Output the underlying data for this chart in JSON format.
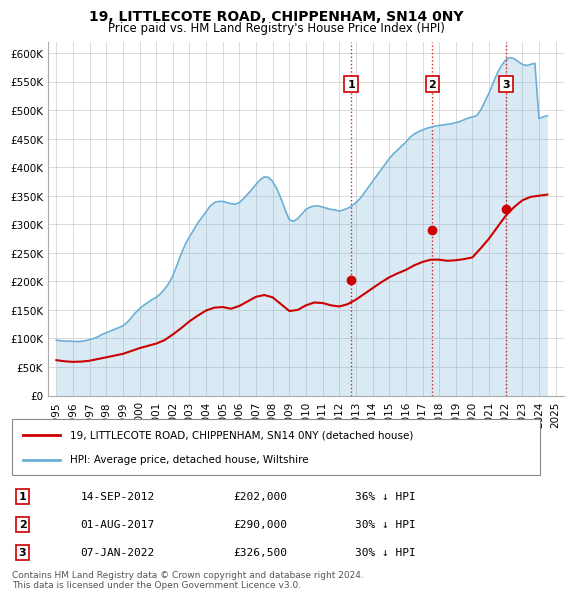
{
  "title": "19, LITTLECOTE ROAD, CHIPPENHAM, SN14 0NY",
  "subtitle": "Price paid vs. HM Land Registry's House Price Index (HPI)",
  "property_label": "19, LITTLECOTE ROAD, CHIPPENHAM, SN14 0NY (detached house)",
  "hpi_label": "HPI: Average price, detached house, Wiltshire",
  "footnote": "Contains HM Land Registry data © Crown copyright and database right 2024.\nThis data is licensed under the Open Government Licence v3.0.",
  "transactions": [
    {
      "num": 1,
      "date": "14-SEP-2012",
      "price": 202000,
      "hpi_note": "36% ↓ HPI",
      "x_year": 2012.71
    },
    {
      "num": 2,
      "date": "01-AUG-2017",
      "price": 290000,
      "hpi_note": "30% ↓ HPI",
      "x_year": 2017.58
    },
    {
      "num": 3,
      "date": "07-JAN-2022",
      "price": 326500,
      "hpi_note": "30% ↓ HPI",
      "x_year": 2022.02
    }
  ],
  "hpi_color": "#6baed6",
  "price_color": "#cc0000",
  "vline_color": "#cc0000",
  "marker_color": "#cc0000",
  "ylim": [
    0,
    620000
  ],
  "xlim_start": 1994.5,
  "xlim_end": 2025.5,
  "background_color": "#ffffff",
  "grid_color": "#cccccc",
  "hpi_data": {
    "years": [
      1995.0,
      1995.25,
      1995.5,
      1995.75,
      1996.0,
      1996.25,
      1996.5,
      1996.75,
      1997.0,
      1997.25,
      1997.5,
      1997.75,
      1998.0,
      1998.25,
      1998.5,
      1998.75,
      1999.0,
      1999.25,
      1999.5,
      1999.75,
      2000.0,
      2000.25,
      2000.5,
      2000.75,
      2001.0,
      2001.25,
      2001.5,
      2001.75,
      2002.0,
      2002.25,
      2002.5,
      2002.75,
      2003.0,
      2003.25,
      2003.5,
      2003.75,
      2004.0,
      2004.25,
      2004.5,
      2004.75,
      2005.0,
      2005.25,
      2005.5,
      2005.75,
      2006.0,
      2006.25,
      2006.5,
      2006.75,
      2007.0,
      2007.25,
      2007.5,
      2007.75,
      2008.0,
      2008.25,
      2008.5,
      2008.75,
      2009.0,
      2009.25,
      2009.5,
      2009.75,
      2010.0,
      2010.25,
      2010.5,
      2010.75,
      2011.0,
      2011.25,
      2011.5,
      2011.75,
      2012.0,
      2012.25,
      2012.5,
      2012.75,
      2013.0,
      2013.25,
      2013.5,
      2013.75,
      2014.0,
      2014.25,
      2014.5,
      2014.75,
      2015.0,
      2015.25,
      2015.5,
      2015.75,
      2016.0,
      2016.25,
      2016.5,
      2016.75,
      2017.0,
      2017.25,
      2017.5,
      2017.75,
      2018.0,
      2018.25,
      2018.5,
      2018.75,
      2019.0,
      2019.25,
      2019.5,
      2019.75,
      2020.0,
      2020.25,
      2020.5,
      2020.75,
      2021.0,
      2021.25,
      2021.5,
      2021.75,
      2022.0,
      2022.25,
      2022.5,
      2022.75,
      2023.0,
      2023.25,
      2023.5,
      2023.75,
      2024.0,
      2024.25,
      2024.5
    ],
    "values": [
      97000,
      96000,
      95000,
      95500,
      95000,
      94500,
      95000,
      96000,
      98000,
      100000,
      103000,
      107000,
      110000,
      113000,
      116000,
      119000,
      122000,
      128000,
      136000,
      145000,
      152000,
      158000,
      163000,
      168000,
      172000,
      178000,
      186000,
      196000,
      210000,
      228000,
      248000,
      265000,
      278000,
      290000,
      302000,
      312000,
      322000,
      332000,
      338000,
      340000,
      340000,
      338000,
      336000,
      335000,
      338000,
      345000,
      353000,
      361000,
      370000,
      378000,
      383000,
      382000,
      375000,
      362000,
      345000,
      325000,
      308000,
      305000,
      310000,
      318000,
      326000,
      330000,
      332000,
      332000,
      330000,
      328000,
      326000,
      325000,
      323000,
      325000,
      328000,
      332000,
      338000,
      345000,
      355000,
      365000,
      375000,
      385000,
      395000,
      405000,
      415000,
      423000,
      430000,
      437000,
      444000,
      452000,
      458000,
      462000,
      465000,
      468000,
      470000,
      472000,
      473000,
      474000,
      475000,
      476000,
      478000,
      480000,
      483000,
      486000,
      488000,
      490000,
      500000,
      515000,
      530000,
      548000,
      565000,
      578000,
      588000,
      592000,
      590000,
      585000,
      580000,
      578000,
      580000,
      582000,
      485000,
      488000,
      490000
    ]
  },
  "price_data": {
    "years": [
      1995.0,
      1995.5,
      1996.0,
      1996.5,
      1997.0,
      1997.5,
      1998.0,
      1998.5,
      1999.0,
      1999.5,
      2000.0,
      2000.5,
      2001.0,
      2001.5,
      2002.0,
      2002.5,
      2003.0,
      2003.5,
      2004.0,
      2004.5,
      2005.0,
      2005.5,
      2006.0,
      2006.5,
      2007.0,
      2007.5,
      2008.0,
      2008.5,
      2009.0,
      2009.5,
      2010.0,
      2010.5,
      2011.0,
      2011.5,
      2012.0,
      2012.5,
      2013.0,
      2013.5,
      2014.0,
      2014.5,
      2015.0,
      2015.5,
      2016.0,
      2016.5,
      2017.0,
      2017.5,
      2018.0,
      2018.5,
      2019.0,
      2019.5,
      2020.0,
      2020.5,
      2021.0,
      2021.5,
      2022.0,
      2022.5,
      2023.0,
      2023.5,
      2024.0,
      2024.5
    ],
    "values": [
      62000,
      60000,
      59000,
      59500,
      61000,
      64000,
      67000,
      70000,
      73000,
      78000,
      83000,
      87000,
      91000,
      97000,
      107000,
      118000,
      130000,
      140000,
      149000,
      154000,
      155000,
      152000,
      157000,
      165000,
      173000,
      176000,
      172000,
      160000,
      148000,
      150000,
      158000,
      163000,
      162000,
      158000,
      156000,
      160000,
      168000,
      178000,
      188000,
      198000,
      207000,
      214000,
      220000,
      228000,
      234000,
      238000,
      238000,
      236000,
      237000,
      239000,
      242000,
      258000,
      275000,
      295000,
      315000,
      330000,
      342000,
      348000,
      350000,
      352000
    ]
  }
}
